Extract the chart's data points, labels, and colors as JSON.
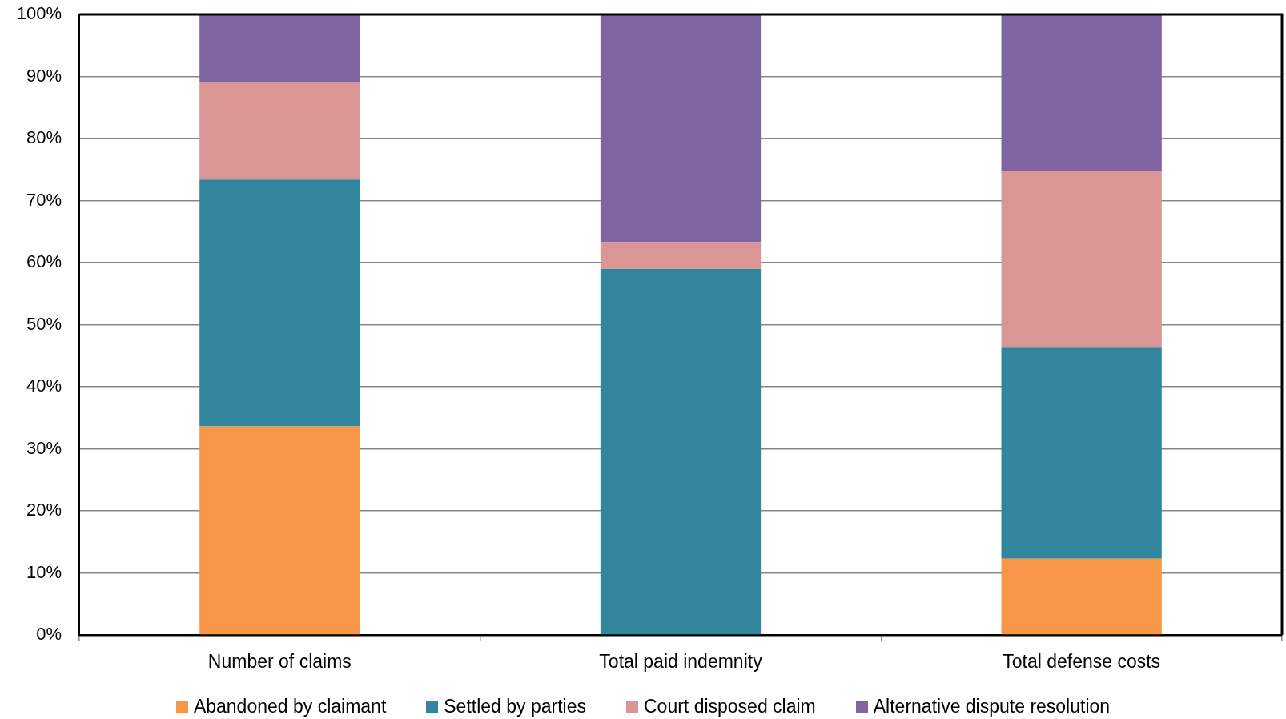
{
  "chart_data": {
    "type": "bar",
    "stacked": true,
    "categories": [
      "Number of claims",
      "Total paid indemnity",
      "Total defense costs"
    ],
    "series": [
      {
        "name": "Abandoned by claimant",
        "color": "#f79646",
        "values": [
          33.6,
          0,
          12.3
        ]
      },
      {
        "name": "Settled by parties",
        "color": "#31859c",
        "values": [
          39.8,
          59.0,
          34.0
        ]
      },
      {
        "name": "Court disposed claim",
        "color": "#d99694",
        "values": [
          15.7,
          4.3,
          28.5
        ]
      },
      {
        "name": "Alternative dispute resolution",
        "color": "#8064a2",
        "values": [
          10.9,
          36.7,
          25.2
        ]
      }
    ],
    "ylim": [
      0,
      100
    ],
    "yticks": [
      {
        "value": 0,
        "label": "0%"
      },
      {
        "value": 10,
        "label": "10%"
      },
      {
        "value": 20,
        "label": "20%"
      },
      {
        "value": 30,
        "label": "30%"
      },
      {
        "value": 40,
        "label": "40%"
      },
      {
        "value": 50,
        "label": "50%"
      },
      {
        "value": 60,
        "label": "60%"
      },
      {
        "value": 70,
        "label": "70%"
      },
      {
        "value": 80,
        "label": "80%"
      },
      {
        "value": 90,
        "label": "90%"
      },
      {
        "value": 100,
        "label": "100%"
      }
    ],
    "grid": "y",
    "legend": "bottom"
  }
}
